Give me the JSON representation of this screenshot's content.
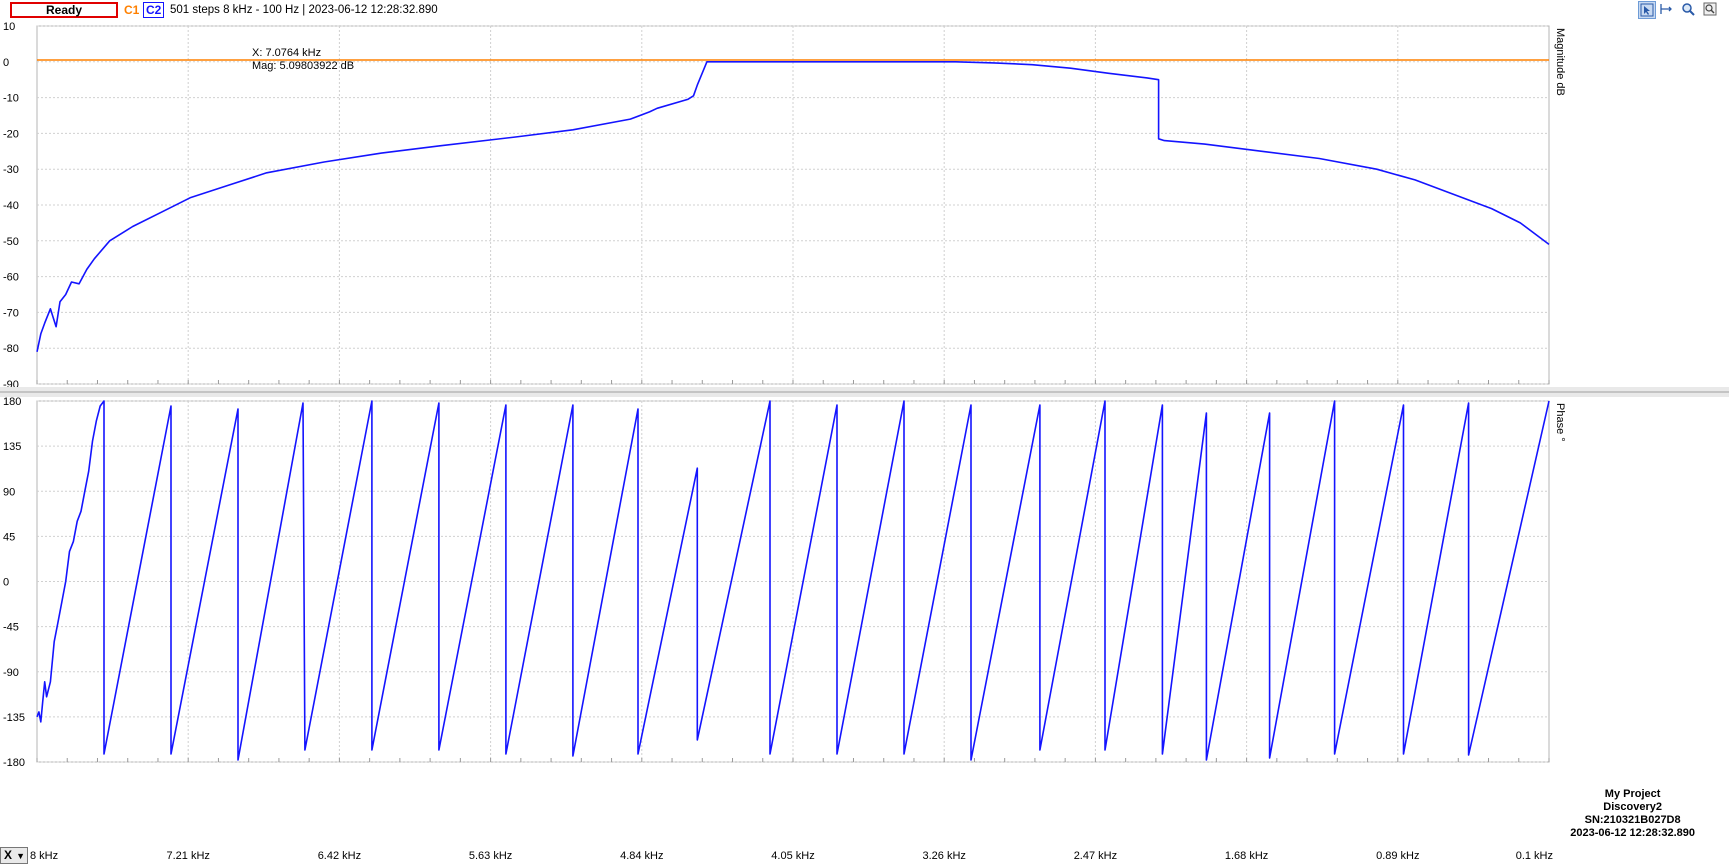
{
  "toolbar": {
    "status": "Ready",
    "c1_label": "C1",
    "c2_label": "C2",
    "info": "501 steps  8 kHz - 100 Hz | 2023-06-12 12:28:32.890",
    "tools": [
      "cursor-select-icon",
      "cursor-span-icon",
      "zoom-icon",
      "export-icon"
    ],
    "x_selector": "X"
  },
  "cursor": {
    "x_text": "X: 7.0764 kHz",
    "mag_text": "Mag: 5.09803922 dB"
  },
  "stamp": {
    "project": "My Project",
    "device": "Discovery2",
    "serial": "SN:210321B027D8",
    "timestamp": "2023-06-12 12:28:32.890"
  },
  "colors": {
    "c1": "#ff8000",
    "c2": "#1414ff",
    "grid": "#d0d0d0",
    "status_border": "#e00000"
  },
  "chart_data": [
    {
      "type": "line",
      "x_direction": "descending",
      "xlim": [
        8,
        0.1
      ],
      "x_tick_labels": [
        "8 kHz",
        "7.21 kHz",
        "6.42 kHz",
        "5.63 kHz",
        "4.84 kHz",
        "4.05 kHz",
        "3.26 kHz",
        "2.47 kHz",
        "1.68 kHz",
        "0.89 kHz",
        "0.1 kHz"
      ],
      "ylabel": "Magnitude dB",
      "ylim": [
        -90,
        10
      ],
      "y_ticks": [
        10,
        0,
        -10,
        -20,
        -30,
        -40,
        -50,
        -60,
        -70,
        -80,
        -90
      ],
      "grid": true,
      "series": [
        {
          "name": "C1",
          "color": "#ff8000",
          "x": [
            8.0,
            7.0,
            6.0,
            5.0,
            4.0,
            3.0,
            2.0,
            1.0,
            0.1
          ],
          "y": [
            0.5,
            0.5,
            0.5,
            0.5,
            0.5,
            0.5,
            0.5,
            0.5,
            0.5
          ]
        },
        {
          "name": "C2",
          "color": "#1414ff",
          "x": [
            8.0,
            7.98,
            7.96,
            7.93,
            7.9,
            7.88,
            7.85,
            7.82,
            7.78,
            7.74,
            7.7,
            7.62,
            7.5,
            7.35,
            7.2,
            7.0,
            6.8,
            6.5,
            6.2,
            5.9,
            5.5,
            5.2,
            4.9,
            4.8,
            4.76,
            4.6,
            4.57,
            4.55,
            4.5,
            4.0,
            3.5,
            3.2,
            3.0,
            2.8,
            2.6,
            2.4,
            2.2,
            2.14,
            2.14,
            2.11,
            1.9,
            1.6,
            1.3,
            1.0,
            0.8,
            0.6,
            0.4,
            0.25,
            0.1
          ],
          "y": [
            -81,
            -76,
            -73,
            -69,
            -74,
            -67,
            -65,
            -61.5,
            -62,
            -58,
            -55,
            -50,
            -46,
            -42,
            -38,
            -34.5,
            -31,
            -28,
            -25.5,
            -23.5,
            -21,
            -19,
            -16,
            -14,
            -13,
            -10.5,
            -9.5,
            -6.5,
            0,
            0,
            0,
            0,
            -0.3,
            -0.8,
            -1.8,
            -3.2,
            -4.5,
            -5,
            -21.5,
            -22,
            -23,
            -25,
            -27,
            -30,
            -33,
            -37,
            -41,
            -45,
            -51
          ]
        }
      ]
    },
    {
      "type": "line",
      "x_direction": "descending",
      "xlim": [
        8,
        0.1
      ],
      "x_tick_labels": [
        "8 kHz",
        "7.21 kHz",
        "6.42 kHz",
        "5.63 kHz",
        "4.84 kHz",
        "4.05 kHz",
        "3.26 kHz",
        "2.47 kHz",
        "1.68 kHz",
        "0.89 kHz",
        "0.1 kHz"
      ],
      "ylabel": "Phase °",
      "ylim": [
        -180,
        180
      ],
      "y_ticks": [
        180,
        135,
        90,
        45,
        0,
        -45,
        -90,
        -135,
        -180
      ],
      "grid": true,
      "series": [
        {
          "name": "C2",
          "color": "#1414ff",
          "x": [
            8.0,
            7.99,
            7.98,
            7.97,
            7.96,
            7.95,
            7.93,
            7.91,
            7.89,
            7.87,
            7.85,
            7.83,
            7.81,
            7.79,
            7.77,
            7.75,
            7.73,
            7.71,
            7.69,
            7.67,
            7.65,
            7.65,
            7.3,
            7.3,
            6.95,
            6.95,
            6.61,
            6.6,
            6.25,
            6.25,
            5.9,
            5.9,
            5.55,
            5.55,
            5.2,
            5.2,
            4.86,
            4.86,
            4.55,
            4.55,
            4.17,
            4.17,
            3.82,
            3.82,
            3.47,
            3.47,
            3.12,
            3.12,
            2.76,
            2.76,
            2.42,
            2.42,
            2.12,
            2.12,
            1.89,
            1.89,
            1.56,
            1.56,
            1.22,
            1.22,
            0.86,
            0.86,
            0.52,
            0.52,
            0.1
          ],
          "y": [
            -135,
            -130,
            -140,
            -120,
            -100,
            -115,
            -100,
            -60,
            -40,
            -20,
            0,
            30,
            40,
            60,
            70,
            90,
            110,
            140,
            160,
            175,
            180,
            -172,
            175,
            -172,
            172,
            -178,
            178,
            -168,
            180,
            -168,
            178,
            -168,
            176,
            -172,
            176,
            -174,
            172,
            -172,
            113,
            -158,
            180,
            -172,
            176,
            -172,
            180,
            -172,
            176,
            -178,
            176,
            -168,
            180,
            -168,
            176,
            -172,
            168,
            -178,
            168,
            -176,
            180,
            -172,
            176,
            -172,
            178,
            -173,
            180
          ]
        }
      ]
    }
  ]
}
